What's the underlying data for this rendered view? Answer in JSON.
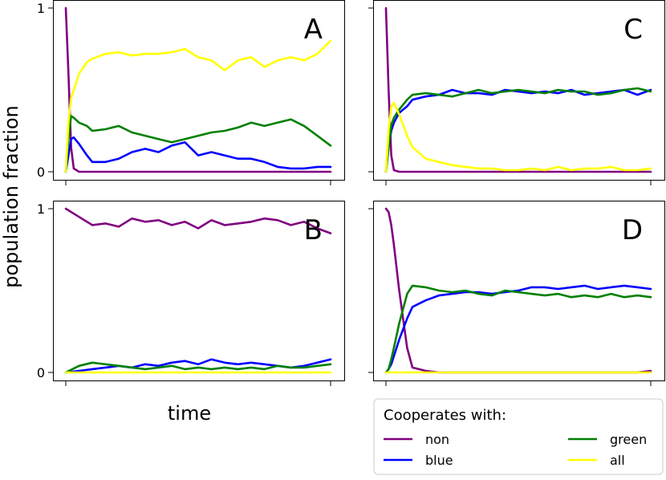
{
  "ylabel": "population fraction",
  "xlabel": "time",
  "legend": {
    "title": "Cooperates with:",
    "placement": "bottom-right, outside panels",
    "entries": [
      {
        "key": "non",
        "label": "non"
      },
      {
        "key": "green",
        "label": "green"
      },
      {
        "key": "blue",
        "label": "blue"
      },
      {
        "key": "all",
        "label": "all"
      }
    ]
  },
  "colors": {
    "non": "#800080",
    "blue": "#0000ff",
    "green": "#008000",
    "all": "#ffff00"
  },
  "chart_data": [
    {
      "type": "line",
      "panel": "A",
      "label": "A",
      "ylim": [
        0,
        1
      ],
      "yticks": [
        {
          "value": 0,
          "label": "0"
        },
        {
          "value": 1,
          "label": "1"
        }
      ],
      "x": [
        0,
        0.01,
        0.02,
        0.03,
        0.05,
        0.08,
        0.1,
        0.15,
        0.2,
        0.25,
        0.3,
        0.35,
        0.4,
        0.45,
        0.5,
        0.55,
        0.6,
        0.65,
        0.7,
        0.75,
        0.8,
        0.85,
        0.9,
        0.95,
        1.0
      ],
      "series": [
        {
          "key": "non",
          "values": [
            1.0,
            0.6,
            0.15,
            0.02,
            0.0,
            0.0,
            0.0,
            0.0,
            0.0,
            0.0,
            0.0,
            0.0,
            0.0,
            0.0,
            0.0,
            0.0,
            0.0,
            0.0,
            0.0,
            0.0,
            0.0,
            0.0,
            0.0,
            0.0,
            0.0
          ]
        },
        {
          "key": "blue",
          "values": [
            0.0,
            0.1,
            0.2,
            0.21,
            0.17,
            0.1,
            0.06,
            0.06,
            0.08,
            0.12,
            0.14,
            0.12,
            0.16,
            0.18,
            0.1,
            0.12,
            0.1,
            0.08,
            0.08,
            0.06,
            0.03,
            0.02,
            0.02,
            0.03,
            0.03
          ]
        },
        {
          "key": "green",
          "values": [
            0.0,
            0.2,
            0.34,
            0.33,
            0.3,
            0.28,
            0.25,
            0.26,
            0.28,
            0.24,
            0.22,
            0.2,
            0.18,
            0.2,
            0.22,
            0.24,
            0.25,
            0.27,
            0.3,
            0.28,
            0.3,
            0.32,
            0.28,
            0.22,
            0.16
          ]
        },
        {
          "key": "all",
          "values": [
            0.0,
            0.3,
            0.45,
            0.5,
            0.6,
            0.67,
            0.69,
            0.72,
            0.73,
            0.71,
            0.72,
            0.72,
            0.73,
            0.75,
            0.7,
            0.68,
            0.62,
            0.68,
            0.7,
            0.64,
            0.68,
            0.7,
            0.68,
            0.72,
            0.8
          ]
        }
      ]
    },
    {
      "type": "line",
      "panel": "C",
      "label": "C",
      "ylim": [
        0,
        1
      ],
      "yticks": [],
      "x": [
        0,
        0.01,
        0.02,
        0.03,
        0.05,
        0.08,
        0.1,
        0.15,
        0.2,
        0.25,
        0.3,
        0.35,
        0.4,
        0.45,
        0.5,
        0.55,
        0.6,
        0.65,
        0.7,
        0.75,
        0.8,
        0.85,
        0.9,
        0.95,
        1.0
      ],
      "series": [
        {
          "key": "non",
          "values": [
            1.0,
            0.5,
            0.1,
            0.01,
            0.0,
            0.0,
            0.0,
            0.0,
            0.0,
            0.0,
            0.0,
            0.0,
            0.0,
            0.0,
            0.0,
            0.0,
            0.0,
            0.0,
            0.0,
            0.0,
            0.0,
            0.0,
            0.0,
            0.0,
            0.0
          ]
        },
        {
          "key": "blue",
          "values": [
            0.0,
            0.15,
            0.25,
            0.3,
            0.36,
            0.4,
            0.44,
            0.46,
            0.47,
            0.5,
            0.48,
            0.48,
            0.47,
            0.5,
            0.49,
            0.48,
            0.49,
            0.48,
            0.5,
            0.47,
            0.48,
            0.49,
            0.5,
            0.47,
            0.5
          ]
        },
        {
          "key": "green",
          "values": [
            0.0,
            0.15,
            0.28,
            0.33,
            0.38,
            0.44,
            0.47,
            0.48,
            0.47,
            0.46,
            0.48,
            0.5,
            0.48,
            0.49,
            0.5,
            0.49,
            0.48,
            0.5,
            0.49,
            0.49,
            0.47,
            0.48,
            0.5,
            0.51,
            0.49
          ]
        },
        {
          "key": "all",
          "values": [
            0.0,
            0.25,
            0.4,
            0.42,
            0.35,
            0.22,
            0.15,
            0.08,
            0.06,
            0.04,
            0.03,
            0.02,
            0.02,
            0.01,
            0.01,
            0.02,
            0.01,
            0.03,
            0.01,
            0.02,
            0.02,
            0.03,
            0.01,
            0.01,
            0.02
          ]
        }
      ]
    },
    {
      "type": "line",
      "panel": "B",
      "label": "B",
      "ylim": [
        0,
        1
      ],
      "yticks": [
        {
          "value": 0,
          "label": "0"
        },
        {
          "value": 1,
          "label": "1"
        }
      ],
      "x": [
        0,
        0.05,
        0.1,
        0.15,
        0.2,
        0.25,
        0.3,
        0.35,
        0.4,
        0.45,
        0.5,
        0.55,
        0.6,
        0.65,
        0.7,
        0.75,
        0.8,
        0.85,
        0.9,
        0.95,
        1.0
      ],
      "series": [
        {
          "key": "non",
          "values": [
            1.0,
            0.95,
            0.9,
            0.91,
            0.89,
            0.94,
            0.92,
            0.93,
            0.9,
            0.92,
            0.88,
            0.93,
            0.9,
            0.91,
            0.92,
            0.94,
            0.93,
            0.9,
            0.92,
            0.88,
            0.85
          ]
        },
        {
          "key": "blue",
          "values": [
            0.0,
            0.01,
            0.02,
            0.03,
            0.04,
            0.03,
            0.05,
            0.04,
            0.06,
            0.07,
            0.05,
            0.08,
            0.06,
            0.05,
            0.06,
            0.05,
            0.04,
            0.03,
            0.04,
            0.06,
            0.08
          ]
        },
        {
          "key": "green",
          "values": [
            0.0,
            0.04,
            0.06,
            0.05,
            0.04,
            0.03,
            0.02,
            0.03,
            0.04,
            0.02,
            0.03,
            0.02,
            0.03,
            0.02,
            0.03,
            0.02,
            0.04,
            0.03,
            0.03,
            0.04,
            0.05
          ]
        },
        {
          "key": "all",
          "values": [
            0.0,
            0.0,
            0.0,
            0.0,
            0.0,
            0.0,
            0.0,
            0.0,
            0.0,
            0.0,
            0.0,
            0.0,
            0.0,
            0.0,
            0.0,
            0.0,
            0.0,
            0.0,
            0.0,
            0.0,
            0.0
          ]
        }
      ]
    },
    {
      "type": "line",
      "panel": "D",
      "label": "D",
      "ylim": [
        0,
        1
      ],
      "yticks": [],
      "x": [
        0,
        0.01,
        0.02,
        0.03,
        0.05,
        0.08,
        0.1,
        0.15,
        0.2,
        0.25,
        0.3,
        0.35,
        0.4,
        0.45,
        0.5,
        0.55,
        0.6,
        0.65,
        0.7,
        0.75,
        0.8,
        0.85,
        0.9,
        0.95,
        1.0
      ],
      "series": [
        {
          "key": "non",
          "values": [
            1.0,
            0.98,
            0.9,
            0.78,
            0.5,
            0.15,
            0.03,
            0.01,
            0.0,
            0.0,
            0.0,
            0.0,
            0.0,
            0.0,
            0.0,
            0.0,
            0.0,
            0.0,
            0.0,
            0.0,
            0.0,
            0.0,
            0.0,
            0.0,
            0.01
          ]
        },
        {
          "key": "blue",
          "values": [
            0.0,
            0.02,
            0.05,
            0.1,
            0.2,
            0.33,
            0.4,
            0.44,
            0.47,
            0.48,
            0.49,
            0.49,
            0.48,
            0.49,
            0.5,
            0.52,
            0.52,
            0.51,
            0.52,
            0.53,
            0.51,
            0.52,
            0.53,
            0.52,
            0.51
          ]
        },
        {
          "key": "green",
          "values": [
            0.0,
            0.02,
            0.08,
            0.15,
            0.3,
            0.48,
            0.53,
            0.52,
            0.5,
            0.49,
            0.5,
            0.48,
            0.47,
            0.5,
            0.49,
            0.48,
            0.47,
            0.48,
            0.46,
            0.47,
            0.46,
            0.48,
            0.46,
            0.47,
            0.46
          ]
        },
        {
          "key": "all",
          "values": [
            0.0,
            0.0,
            0.0,
            0.0,
            0.0,
            0.0,
            0.0,
            0.0,
            0.0,
            0.0,
            0.0,
            0.0,
            0.0,
            0.0,
            0.0,
            0.0,
            0.0,
            0.0,
            0.0,
            0.0,
            0.0,
            0.0,
            0.0,
            0.0,
            0.0
          ]
        }
      ]
    }
  ]
}
